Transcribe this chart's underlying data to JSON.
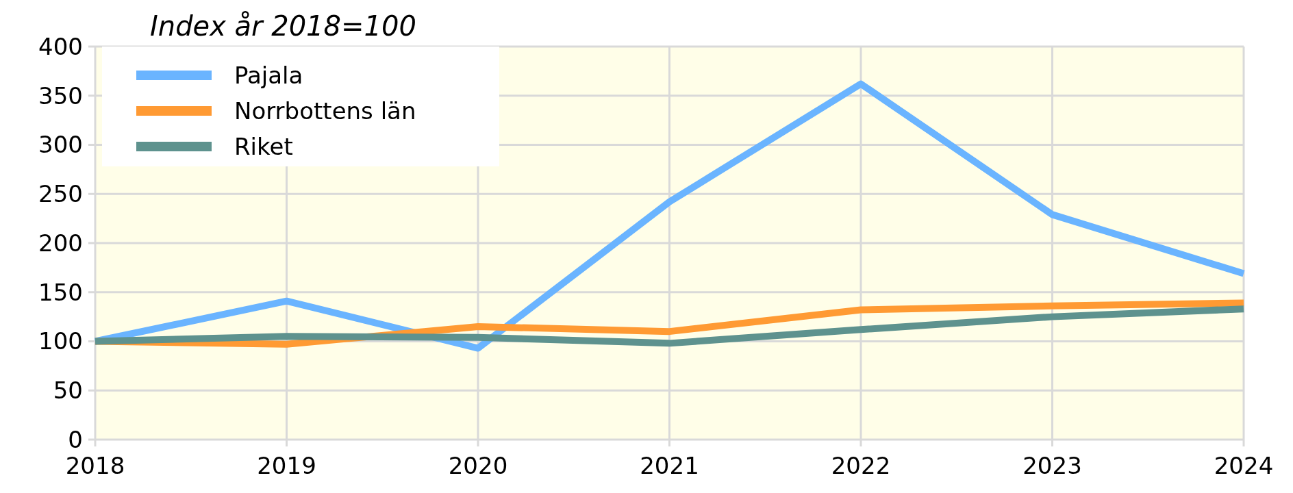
{
  "chart_data": {
    "type": "line",
    "title": "Index år 2018=100",
    "x": [
      2018,
      2019,
      2020,
      2021,
      2022,
      2023,
      2024
    ],
    "xlim": [
      2018,
      2024
    ],
    "xticks": [
      2018,
      2019,
      2020,
      2021,
      2022,
      2023,
      2024
    ],
    "ylim": [
      0,
      400
    ],
    "yticks": [
      0,
      50,
      100,
      150,
      200,
      250,
      300,
      350,
      400
    ],
    "grid": true,
    "legend": "top left",
    "series": [
      {
        "name": "Pajala",
        "color": "#6ab4ff",
        "values": [
          100,
          141,
          93,
          242,
          362,
          229,
          169
        ]
      },
      {
        "name": "Norrbottens län",
        "color": "#ff9a33",
        "values": [
          100,
          97,
          115,
          110,
          132,
          136,
          139
        ]
      },
      {
        "name": "Riket",
        "color": "#5e928e",
        "values": [
          100,
          105,
          104,
          98,
          112,
          125,
          133
        ]
      }
    ]
  }
}
